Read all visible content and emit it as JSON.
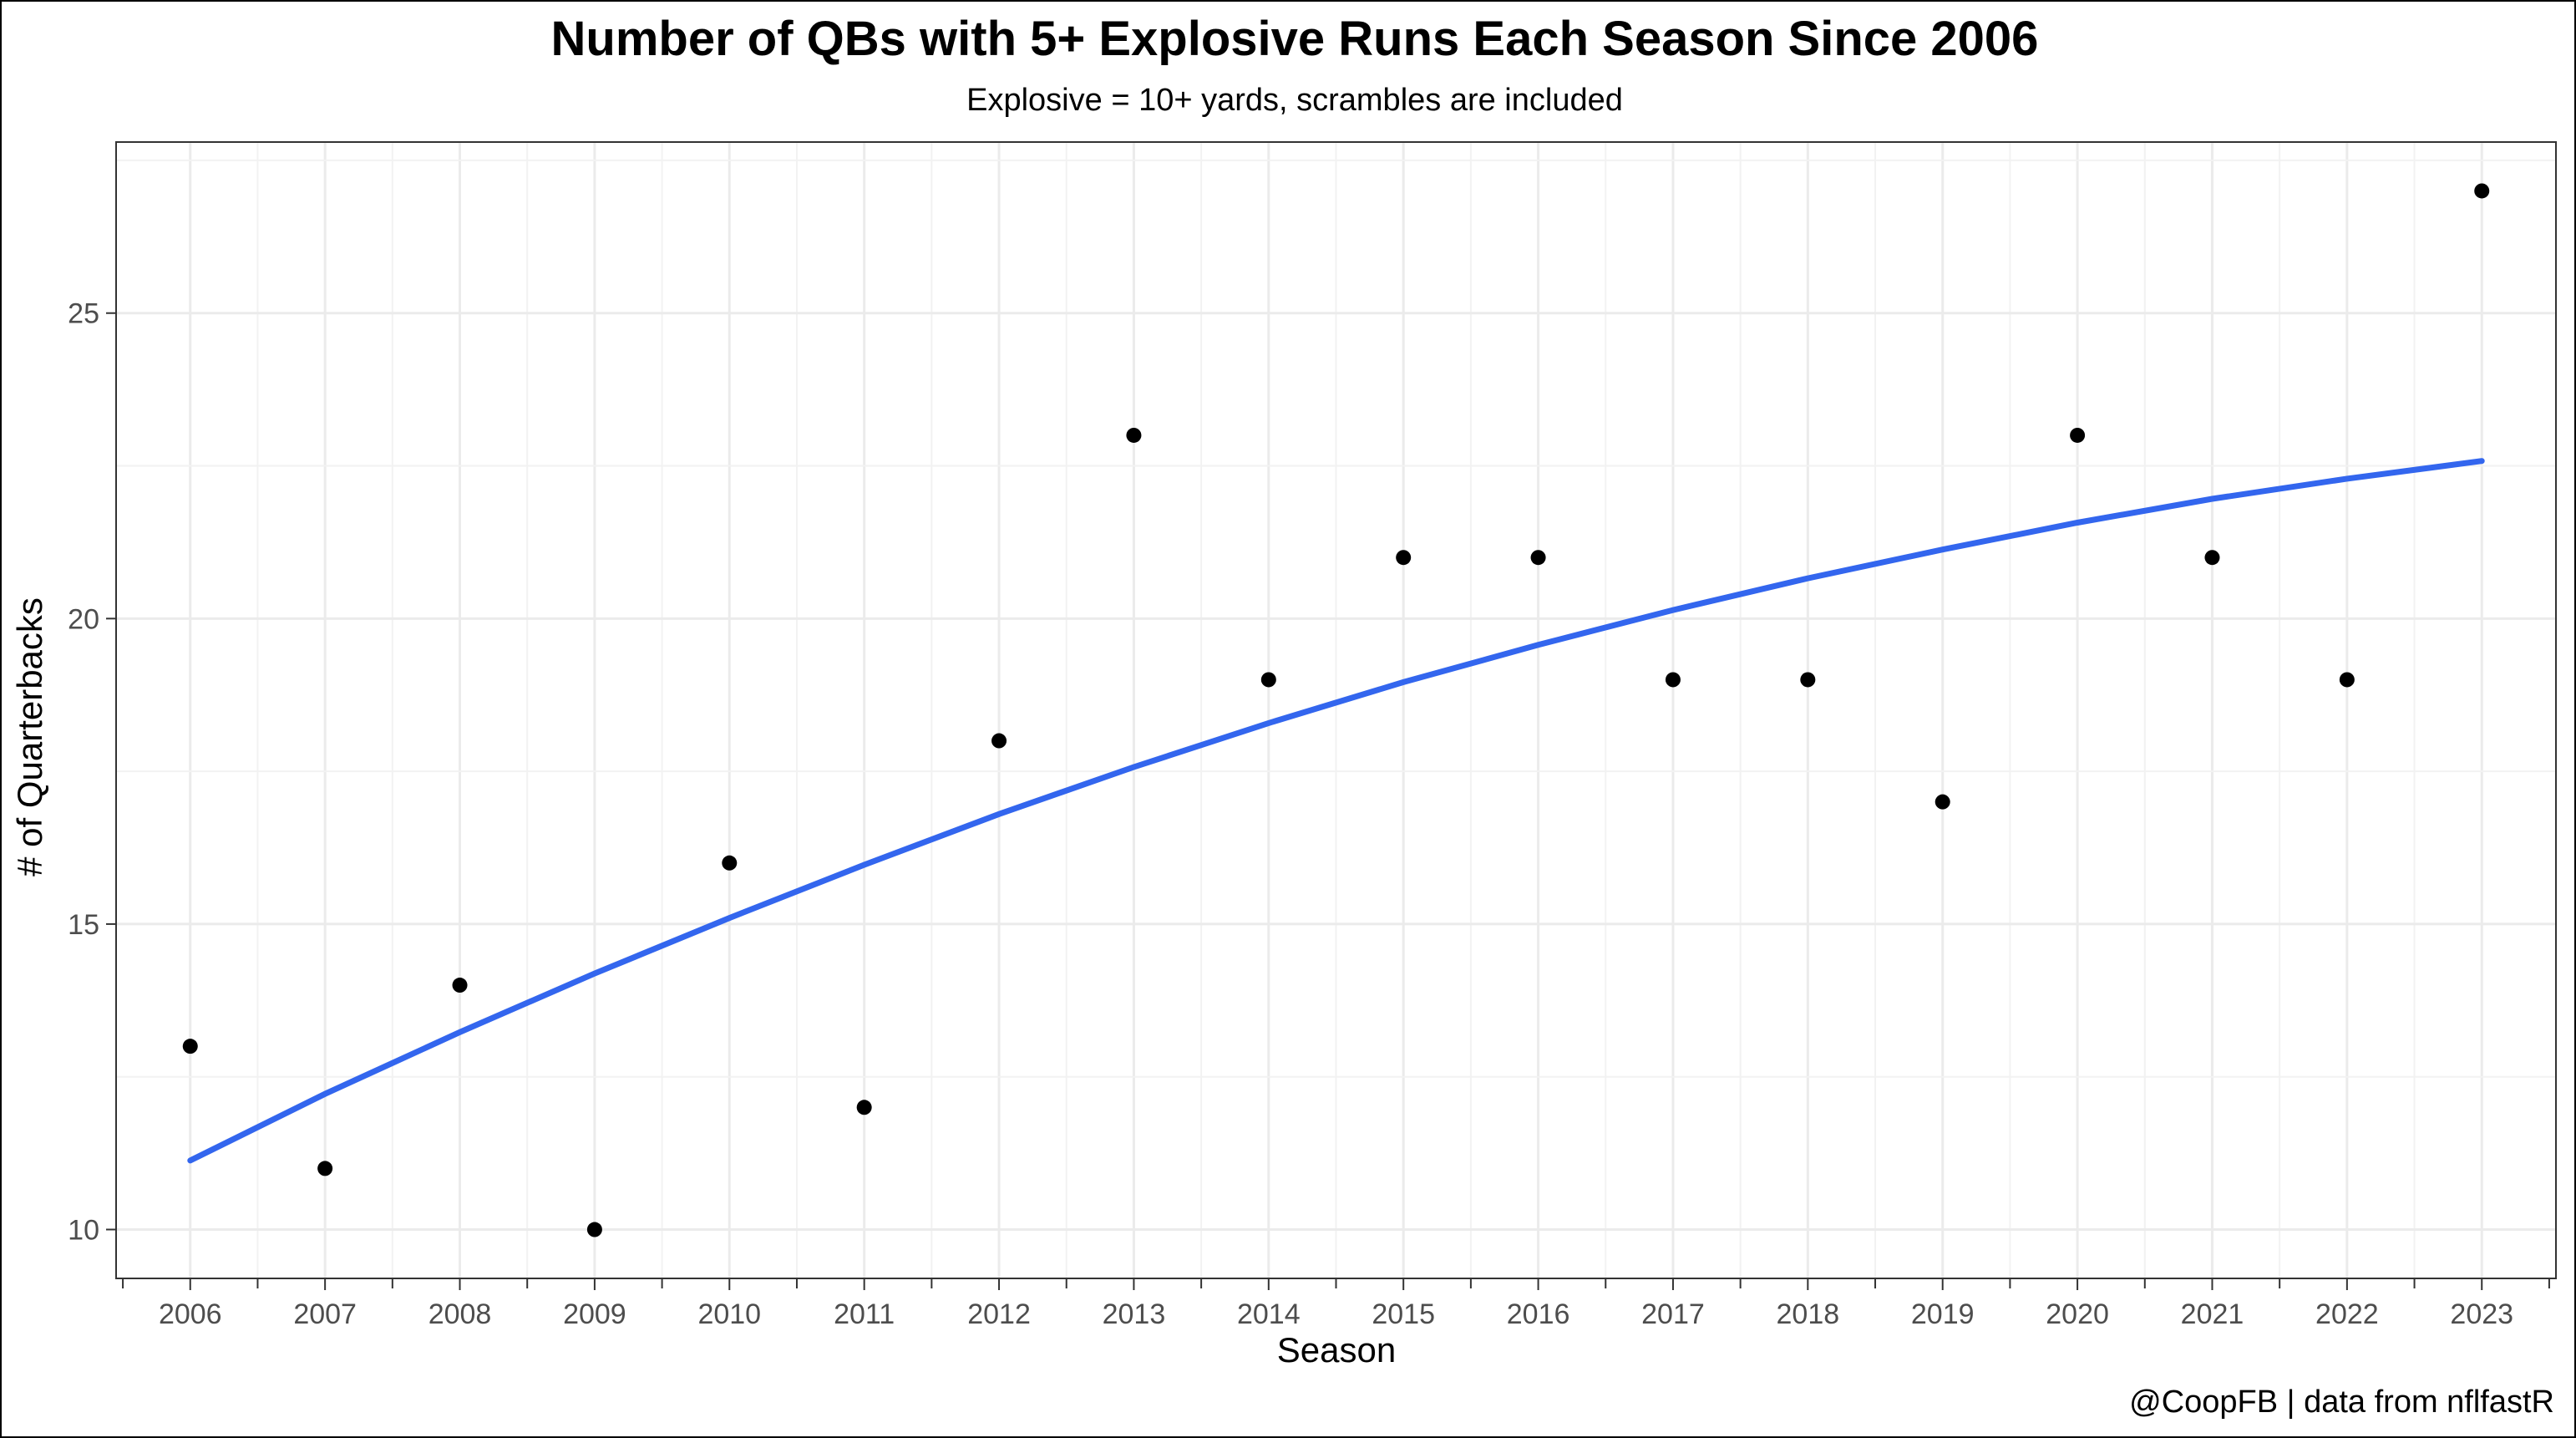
{
  "chart_data": {
    "type": "scatter",
    "title": "Number of QBs with 5+ Explosive Runs Each Season Since 2006",
    "subtitle": "Explosive = 10+ yards, scrambles are included",
    "xlabel": "Season",
    "ylabel": "# of Quarterbacks",
    "caption": "@CoopFB | data from nflfastR",
    "xlim": [
      2005.45,
      2023.55
    ],
    "ylim": [
      9.2,
      27.8
    ],
    "x_ticks": [
      2006,
      2007,
      2008,
      2009,
      2010,
      2011,
      2012,
      2013,
      2014,
      2015,
      2016,
      2017,
      2018,
      2019,
      2020,
      2021,
      2022,
      2023
    ],
    "y_ticks": [
      10,
      15,
      20,
      25
    ],
    "grid": true,
    "point_color": "#000000",
    "trend_color": "#3366ee",
    "series": [
      {
        "x": [
          2006,
          2007,
          2008,
          2009,
          2010,
          2011,
          2012,
          2013,
          2014,
          2015,
          2016,
          2017,
          2018,
          2019,
          2020,
          2021,
          2022,
          2023
        ],
        "values": [
          13,
          11,
          14,
          10,
          16,
          12,
          18,
          23,
          19,
          21,
          21,
          19,
          19,
          17,
          23,
          21,
          19,
          27
        ]
      }
    ],
    "trend": {
      "x": [
        2006,
        2007,
        2008,
        2009,
        2010,
        2011,
        2012,
        2013,
        2014,
        2015,
        2016,
        2017,
        2018,
        2019,
        2020,
        2021,
        2022,
        2023
      ],
      "values": [
        11.13,
        12.22,
        13.23,
        14.19,
        15.1,
        15.97,
        16.8,
        17.57,
        18.29,
        18.96,
        19.57,
        20.14,
        20.66,
        21.13,
        21.57,
        21.96,
        22.29,
        22.58
      ]
    }
  }
}
